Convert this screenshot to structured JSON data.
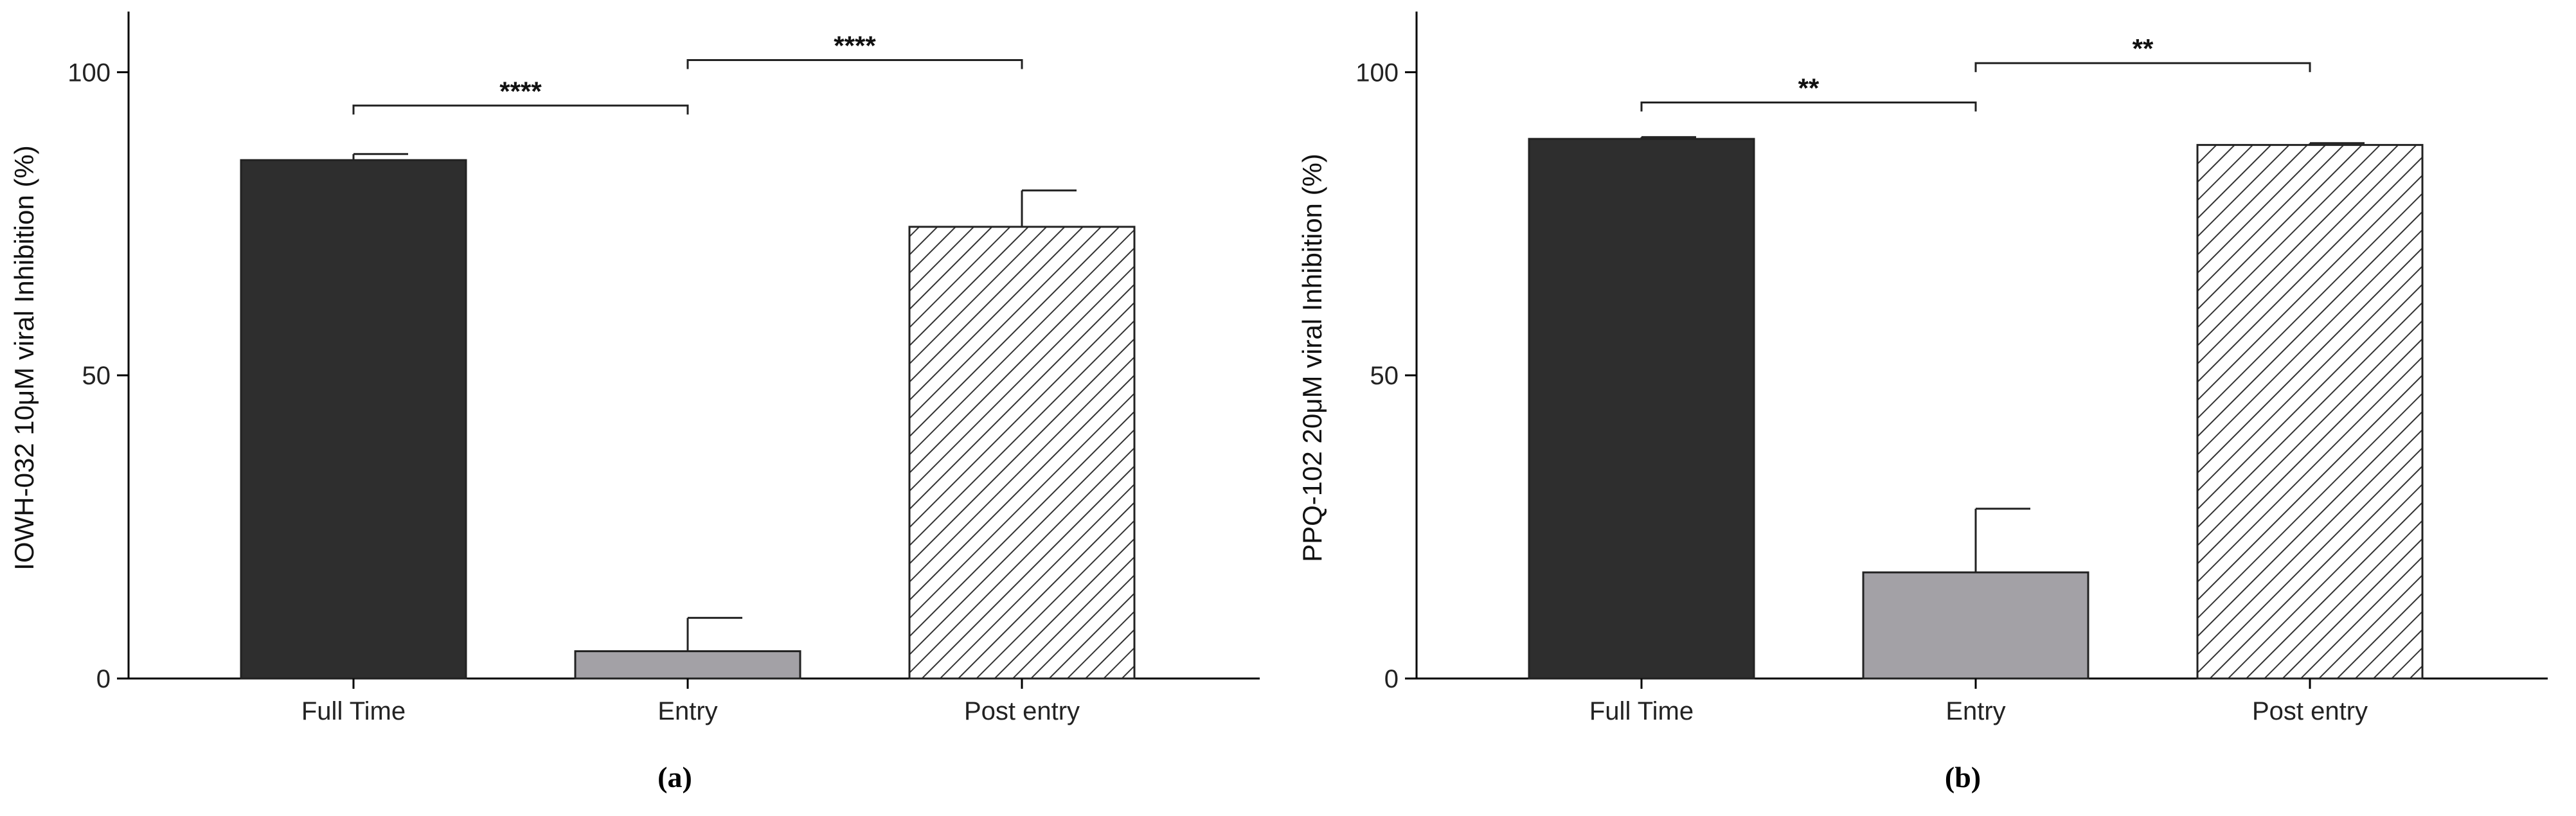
{
  "colors": {
    "full_time": "#2e2e2e",
    "entry": "#a3a1a6",
    "post_entry_hatch": "#333333"
  },
  "chart_data": [
    {
      "type": "bar",
      "panel_label": "(a)",
      "ylabel": "IOWH-032 10μM viral Inhibition (%)",
      "xlabel": "",
      "ylim": [
        0,
        110
      ],
      "yticks": [
        0,
        50,
        100
      ],
      "categories": [
        "Full Time",
        "Entry",
        "Post entry"
      ],
      "values": [
        85.5,
        4.5,
        74.5
      ],
      "errors": [
        1.0,
        5.5,
        6.0
      ],
      "fills": [
        "solid-dark",
        "solid-gray",
        "hatched"
      ],
      "significance": [
        {
          "from": 0,
          "to": 1,
          "label": "****",
          "y": 94.5
        },
        {
          "from": 1,
          "to": 2,
          "label": "****",
          "y": 102
        }
      ]
    },
    {
      "type": "bar",
      "panel_label": "(b)",
      "ylabel": "PPQ-102 20μM viral Inhibition (%)",
      "xlabel": "",
      "ylim": [
        0,
        110
      ],
      "yticks": [
        0,
        50,
        100
      ],
      "categories": [
        "Full Time",
        "Entry",
        "Post entry"
      ],
      "values": [
        89,
        17.5,
        88
      ],
      "errors": [
        0.3,
        10.5,
        0.3
      ],
      "fills": [
        "solid-dark",
        "solid-gray",
        "hatched"
      ],
      "significance": [
        {
          "from": 0,
          "to": 1,
          "label": "**",
          "y": 95
        },
        {
          "from": 1,
          "to": 2,
          "label": "**",
          "y": 101.5
        }
      ]
    }
  ]
}
